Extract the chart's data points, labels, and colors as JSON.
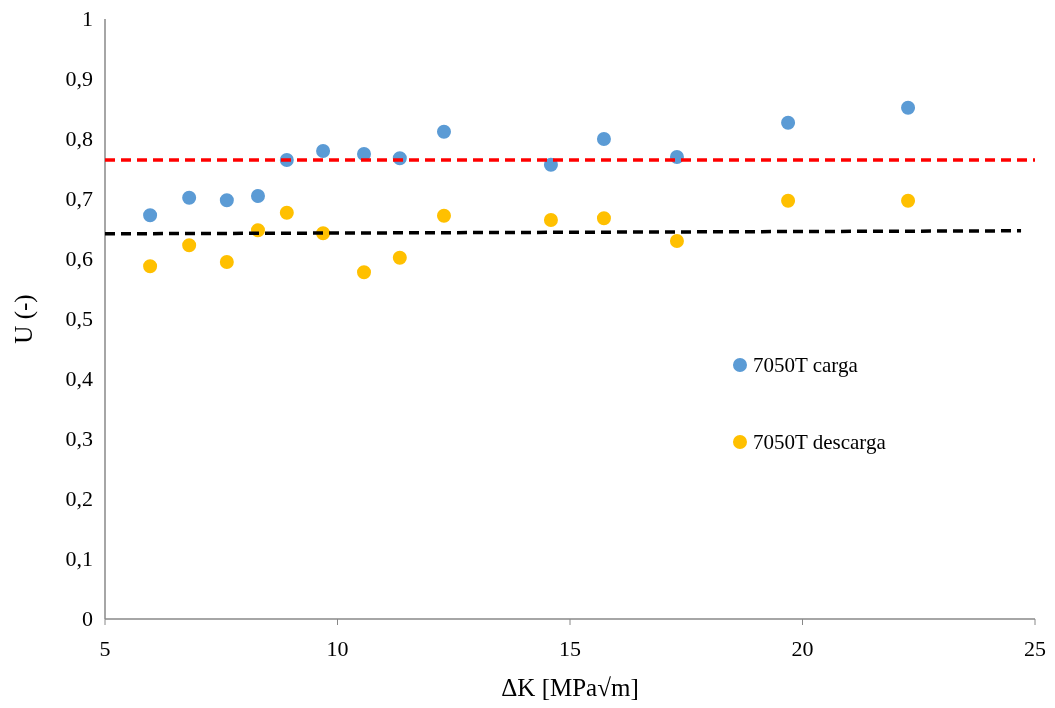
{
  "chart_data": {
    "type": "scatter",
    "xlabel": "ΔK [MPa√m]",
    "ylabel": "U (-)",
    "x": [
      5.97,
      6.81,
      7.62,
      8.29,
      8.91,
      9.69,
      10.57,
      11.34,
      12.29,
      14.59,
      15.73,
      17.3,
      19.69,
      22.27
    ],
    "series": [
      {
        "name": "7050T carga",
        "color": "#5b9bd5",
        "values": [
          0.673,
          0.702,
          0.698,
          0.705,
          0.765,
          0.78,
          0.775,
          0.768,
          0.812,
          0.757,
          0.8,
          0.77,
          0.827,
          0.852
        ]
      },
      {
        "name": "7050T descarga",
        "color": "#ffc000",
        "values": [
          0.588,
          0.623,
          0.595,
          0.648,
          0.677,
          0.643,
          0.578,
          0.602,
          0.672,
          0.665,
          0.668,
          0.63,
          0.697,
          0.697
        ]
      },
      {
        "type": "line",
        "color": "#000000",
        "x": [
          5,
          24.7
        ],
        "values": [
          0.642,
          0.647
        ],
        "line_style": "dashed",
        "marker": "none"
      }
    ],
    "xlim": [
      5,
      25
    ],
    "xticks": [
      5,
      10,
      15,
      20,
      25
    ],
    "ylim": [
      0,
      1
    ],
    "yticks": [
      0,
      {
        "value": 0.1,
        "label": "0,1"
      },
      {
        "value": 0.2,
        "label": "0,2"
      },
      {
        "value": 0.3,
        "label": "0,3"
      },
      {
        "value": 0.4,
        "label": "0,4"
      },
      {
        "value": 0.5,
        "label": "0,5"
      },
      {
        "value": 0.6,
        "label": "0,6"
      },
      {
        "value": 0.7,
        "label": "0,7"
      },
      {
        "value": 0.8,
        "label": "0,8"
      },
      {
        "value": 0.9,
        "label": "0,9"
      },
      1
    ],
    "ref_lines": [
      {
        "axis": "y",
        "value": 0.765,
        "color": "#ff0000",
        "line_style": "dashed"
      }
    ],
    "grid": false,
    "legend": "right",
    "marker": "circle"
  }
}
